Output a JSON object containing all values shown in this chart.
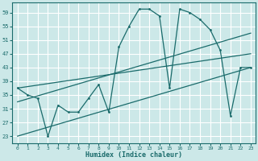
{
  "xlabel": "Humidex (Indice chaleur)",
  "bg_color": "#cce8e8",
  "line_color": "#1a6b6b",
  "grid_color": "#ffffff",
  "xlim": [
    -0.5,
    23.5
  ],
  "ylim": [
    21,
    62
  ],
  "xticks": [
    0,
    1,
    2,
    3,
    4,
    5,
    6,
    7,
    8,
    9,
    10,
    11,
    12,
    13,
    14,
    15,
    16,
    17,
    18,
    19,
    20,
    21,
    22,
    23
  ],
  "yticks": [
    23,
    27,
    31,
    35,
    39,
    43,
    47,
    51,
    55,
    59
  ],
  "series1_x": [
    0,
    1,
    2,
    3,
    4,
    5,
    6,
    7,
    8,
    9,
    10,
    11,
    12,
    13,
    14,
    15,
    16,
    17,
    18,
    19,
    20,
    21,
    22,
    23
  ],
  "series1_y": [
    37,
    35,
    34,
    23,
    32,
    30,
    30,
    34,
    38,
    30,
    49,
    55,
    60,
    60,
    58,
    37,
    60,
    59,
    57,
    54,
    48,
    29,
    43,
    43
  ],
  "trend1_x": [
    0,
    23
  ],
  "trend1_y": [
    37,
    47
  ],
  "trend2_x": [
    0,
    23
  ],
  "trend2_y": [
    33,
    53
  ],
  "trend3_x": [
    0,
    23
  ],
  "trend3_y": [
    23,
    43
  ]
}
